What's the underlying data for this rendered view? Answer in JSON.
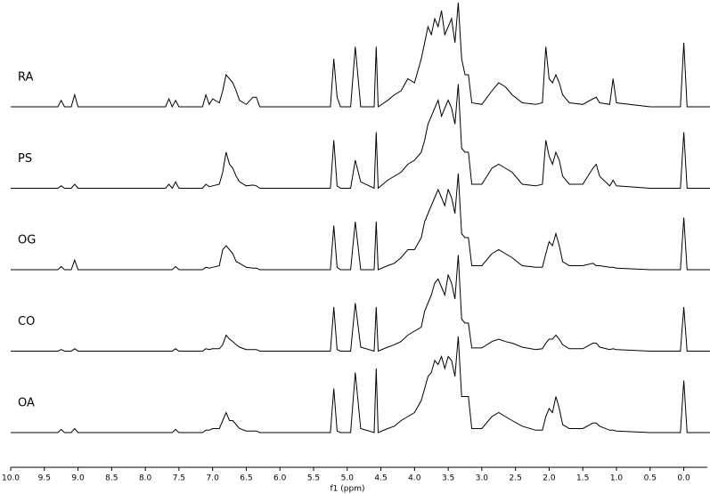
{
  "chart_data": {
    "type": "line",
    "xlabel": "f1 (ppm)",
    "xlim": [
      10.0,
      -0.35
    ],
    "xticks": [
      {
        "value": 10.0,
        "label": "10.0"
      },
      9.5,
      {
        "value": 9.0,
        "label": "9.0"
      },
      8.5,
      {
        "value": 8.0,
        "label": "8.0"
      },
      7.5,
      {
        "value": 7.0,
        "label": "7.0"
      },
      6.5,
      {
        "value": 6.0,
        "label": "6.0"
      },
      5.5,
      {
        "value": 5.0,
        "label": "5.0"
      },
      4.5,
      {
        "value": 4.0,
        "label": "4.0"
      },
      3.5,
      {
        "value": 3.0,
        "label": "3.0"
      },
      2.5,
      {
        "value": 2.0,
        "label": "2.0"
      },
      1.5,
      {
        "value": 1.0,
        "label": "1.0"
      },
      0.5,
      {
        "value": 0.0,
        "label": "0.0"
      }
    ],
    "x": [
      10.0,
      9.3,
      9.25,
      9.2,
      9.1,
      9.05,
      9.0,
      7.7,
      7.65,
      7.6,
      7.55,
      7.5,
      7.15,
      7.1,
      7.05,
      7.0,
      6.9,
      6.85,
      6.8,
      6.75,
      6.7,
      6.65,
      6.6,
      6.5,
      6.4,
      6.35,
      6.3,
      5.25,
      5.2,
      5.15,
      5.1,
      4.95,
      4.88,
      4.8,
      4.6,
      4.57,
      4.54,
      4.4,
      4.3,
      4.2,
      4.1,
      4.0,
      3.9,
      3.85,
      3.8,
      3.75,
      3.7,
      3.65,
      3.6,
      3.55,
      3.5,
      3.45,
      3.4,
      3.35,
      3.3,
      3.25,
      3.2,
      3.15,
      3.0,
      2.85,
      2.75,
      2.65,
      2.55,
      2.4,
      2.2,
      2.1,
      2.05,
      2.0,
      1.95,
      1.9,
      1.85,
      1.8,
      1.7,
      1.5,
      1.35,
      1.3,
      1.25,
      1.1,
      1.05,
      1.0,
      0.5,
      0.05,
      0.0,
      -0.05,
      -0.4
    ],
    "series": [
      {
        "name": "RA",
        "color": "#000000",
        "values": [
          0,
          0,
          8,
          0,
          0,
          15,
          0,
          0,
          10,
          0,
          8,
          0,
          0,
          15,
          3,
          10,
          5,
          20,
          40,
          35,
          30,
          20,
          8,
          3,
          12,
          12,
          0,
          0,
          60,
          12,
          0,
          0,
          75,
          0,
          0,
          75,
          0,
          8,
          15,
          20,
          35,
          30,
          60,
          80,
          100,
          90,
          110,
          100,
          120,
          90,
          100,
          110,
          80,
          130,
          60,
          40,
          40,
          5,
          3,
          20,
          30,
          25,
          15,
          5,
          3,
          5,
          75,
          35,
          30,
          40,
          30,
          15,
          5,
          3,
          10,
          12,
          5,
          3,
          35,
          5,
          0,
          0,
          80,
          0,
          0
        ]
      },
      {
        "name": "PS",
        "color": "#000000",
        "values": [
          0,
          0,
          3,
          0,
          0,
          5,
          0,
          0,
          5,
          0,
          8,
          0,
          0,
          5,
          2,
          3,
          5,
          20,
          45,
          30,
          25,
          15,
          8,
          3,
          4,
          3,
          0,
          0,
          60,
          3,
          0,
          0,
          35,
          8,
          0,
          70,
          0,
          10,
          15,
          20,
          30,
          35,
          45,
          60,
          80,
          90,
          100,
          110,
          90,
          100,
          110,
          100,
          80,
          130,
          50,
          45,
          45,
          5,
          5,
          25,
          30,
          25,
          20,
          5,
          3,
          5,
          60,
          40,
          30,
          45,
          35,
          15,
          5,
          5,
          25,
          30,
          15,
          3,
          10,
          3,
          0,
          0,
          70,
          0,
          0
        ]
      },
      {
        "name": "OG",
        "color": "#000000",
        "values": [
          0,
          0,
          4,
          0,
          0,
          12,
          0,
          0,
          0,
          0,
          4,
          0,
          0,
          3,
          2,
          3,
          5,
          25,
          30,
          25,
          20,
          10,
          8,
          3,
          2,
          2,
          0,
          0,
          55,
          3,
          0,
          0,
          60,
          0,
          0,
          60,
          0,
          5,
          8,
          15,
          25,
          25,
          40,
          60,
          70,
          80,
          90,
          100,
          90,
          80,
          100,
          90,
          70,
          120,
          45,
          40,
          40,
          5,
          5,
          20,
          25,
          20,
          15,
          5,
          3,
          3,
          20,
          35,
          30,
          45,
          30,
          10,
          5,
          5,
          8,
          5,
          5,
          3,
          3,
          2,
          0,
          0,
          65,
          0,
          0
        ]
      },
      {
        "name": "CO",
        "color": "#000000",
        "values": [
          0,
          0,
          2,
          0,
          0,
          3,
          0,
          0,
          0,
          0,
          3,
          0,
          0,
          3,
          2,
          3,
          3,
          8,
          20,
          15,
          12,
          8,
          5,
          2,
          2,
          2,
          0,
          0,
          55,
          2,
          0,
          0,
          60,
          5,
          0,
          55,
          0,
          5,
          8,
          12,
          20,
          25,
          30,
          50,
          60,
          70,
          85,
          90,
          80,
          70,
          95,
          85,
          65,
          120,
          40,
          35,
          35,
          4,
          4,
          12,
          15,
          12,
          10,
          5,
          2,
          3,
          10,
          15,
          15,
          20,
          15,
          8,
          3,
          3,
          10,
          10,
          5,
          2,
          3,
          2,
          0,
          0,
          55,
          0,
          0
        ]
      },
      {
        "name": "OA",
        "color": "#000000",
        "values": [
          0,
          0,
          4,
          0,
          0,
          5,
          0,
          0,
          0,
          0,
          4,
          0,
          0,
          3,
          3,
          5,
          5,
          15,
          25,
          15,
          15,
          10,
          5,
          2,
          2,
          2,
          0,
          0,
          55,
          2,
          0,
          0,
          75,
          5,
          0,
          80,
          0,
          5,
          8,
          15,
          20,
          25,
          40,
          55,
          70,
          75,
          90,
          85,
          95,
          80,
          95,
          90,
          70,
          120,
          45,
          45,
          45,
          5,
          5,
          20,
          25,
          20,
          15,
          8,
          3,
          3,
          20,
          30,
          25,
          45,
          30,
          10,
          5,
          5,
          12,
          12,
          8,
          3,
          3,
          2,
          0,
          0,
          65,
          0,
          0
        ]
      }
    ]
  }
}
